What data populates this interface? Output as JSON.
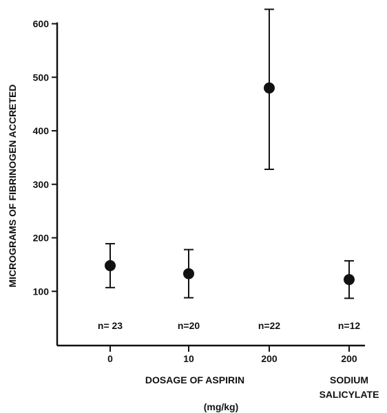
{
  "chart_data": {
    "type": "scatter",
    "ylabel": "MICROGRAMS OF FIBRINOGEN ACCRETED",
    "xlabel": "DOSAGE OF ASPIRIN",
    "xlabel_unit": "(mg/kg)",
    "extra_group_label": [
      "SODIUM",
      "SALICYLATE"
    ],
    "ylim": [
      0,
      600
    ],
    "yticks": [
      100,
      200,
      300,
      400,
      500,
      600
    ],
    "grid": false,
    "categories": [
      "0",
      "10",
      "200",
      "200"
    ],
    "points": [
      {
        "x": "0",
        "y": 148,
        "err_low": 107,
        "err_high": 189,
        "n": "n= 23"
      },
      {
        "x": "10",
        "y": 133,
        "err_low": 88,
        "err_high": 178,
        "n": "n=20"
      },
      {
        "x": "200",
        "y": 480,
        "err_low": 328,
        "err_high": 627,
        "n": "n=22"
      },
      {
        "x": "200",
        "y": 122,
        "err_low": 87,
        "err_high": 157,
        "n": "n=12"
      }
    ],
    "marker_color": "#111111"
  }
}
